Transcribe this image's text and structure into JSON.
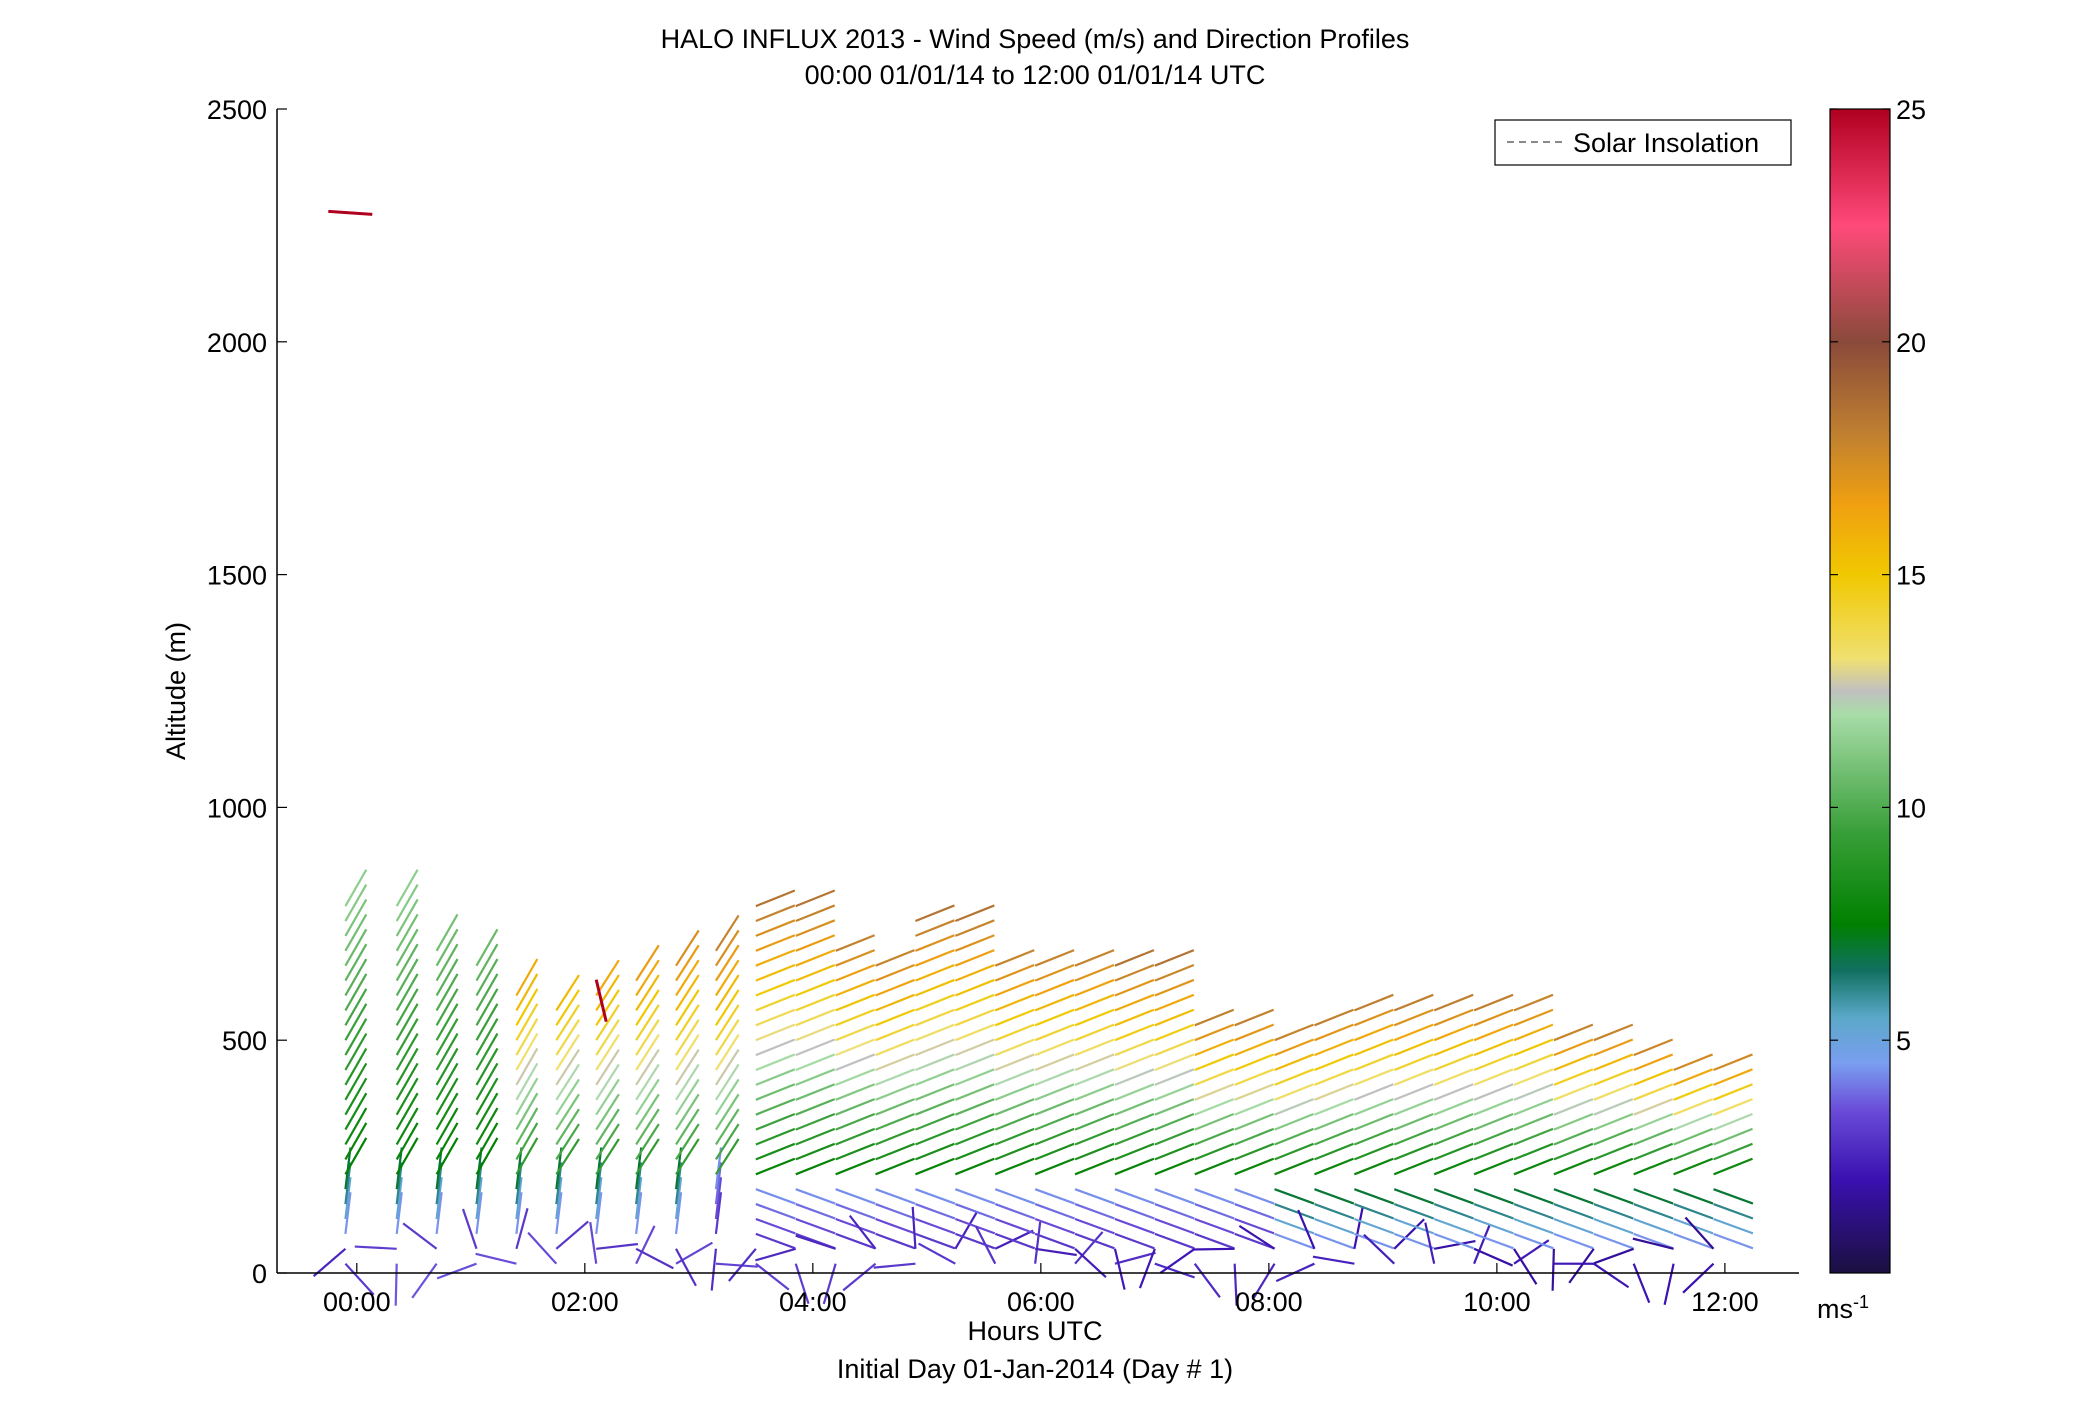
{
  "chart_data": {
    "type": "quiver",
    "title": "HALO INFLUX 2013 - Wind Speed (m/s) and Direction Profiles",
    "subtitle": "00:00 01/01/14 to 12:00 01/01/14  UTC",
    "xlabel": "Hours UTC",
    "xlabel2": "Initial Day 01-Jan-2014 (Day # 1)",
    "ylabel": "Altitude (m)",
    "xlim": [
      -0.7,
      12.65
    ],
    "ylim": [
      0,
      2500
    ],
    "x_ticks": [
      0,
      2,
      4,
      6,
      8,
      10,
      12
    ],
    "x_tick_labels": [
      "00:00",
      "02:00",
      "04:00",
      "06:00",
      "08:00",
      "10:00",
      "12:00"
    ],
    "y_ticks": [
      0,
      500,
      1000,
      1500,
      2000,
      2500
    ],
    "y_tick_labels": [
      "0",
      "500",
      "1000",
      "1500",
      "2000",
      "2500"
    ],
    "legend": {
      "entries": [
        {
          "label": "Solar Insolation",
          "style": "dashed",
          "color": "#8a8a8a"
        }
      ],
      "placement": "top-right"
    },
    "colorbar": {
      "range": [
        0,
        25
      ],
      "ticks": [
        5,
        10,
        15,
        20,
        25
      ],
      "tick_labels": [
        "5",
        "10",
        "15",
        "20",
        "25"
      ],
      "unit": "ms",
      "unit_exp": "-1"
    },
    "colormap": [
      {
        "v": 0,
        "c": "#1a1040"
      },
      {
        "v": 2,
        "c": "#3a10b0"
      },
      {
        "v": 3.5,
        "c": "#6a4cd8"
      },
      {
        "v": 4.5,
        "c": "#7a9ef0"
      },
      {
        "v": 5.5,
        "c": "#5aa8c8"
      },
      {
        "v": 6.5,
        "c": "#107060"
      },
      {
        "v": 7.5,
        "c": "#008000"
      },
      {
        "v": 9.5,
        "c": "#3aa03a"
      },
      {
        "v": 12,
        "c": "#a8dca8"
      },
      {
        "v": 12.5,
        "c": "#c0c0c0"
      },
      {
        "v": 13.2,
        "c": "#f0e070"
      },
      {
        "v": 15,
        "c": "#f0c800"
      },
      {
        "v": 16.5,
        "c": "#f0a010"
      },
      {
        "v": 18,
        "c": "#c08030"
      },
      {
        "v": 20,
        "c": "#8a4a3a"
      },
      {
        "v": 22.5,
        "c": "#ff4a7a"
      },
      {
        "v": 25,
        "c": "#b00020"
      }
    ],
    "isolated_vectors": [
      {
        "t": -0.25,
        "alt": 2280,
        "speed": 25,
        "dir": "west"
      },
      {
        "t": 2.1,
        "alt": 630,
        "speed": 25,
        "dir": "north-northwest"
      }
    ],
    "profile_times": [
      -0.1,
      0.35,
      0.7,
      1.05,
      1.4,
      1.75,
      2.1,
      2.45,
      2.8,
      3.15,
      3.5,
      3.85,
      4.2,
      4.55,
      4.9,
      5.25,
      5.6,
      5.95,
      6.3,
      6.65,
      7.0,
      7.35,
      7.7,
      8.05,
      8.4,
      8.75,
      9.1,
      9.45,
      9.8,
      10.15,
      10.5,
      10.85,
      11.2,
      11.55,
      11.9
    ],
    "profile_tops": [
      790,
      790,
      720,
      690,
      620,
      590,
      620,
      640,
      690,
      720,
      790,
      790,
      720,
      690,
      760,
      760,
      690,
      690,
      690,
      660,
      660,
      550,
      550,
      520,
      550,
      580,
      580,
      580,
      580,
      590,
      520,
      520,
      490,
      460,
      460
    ]
  }
}
